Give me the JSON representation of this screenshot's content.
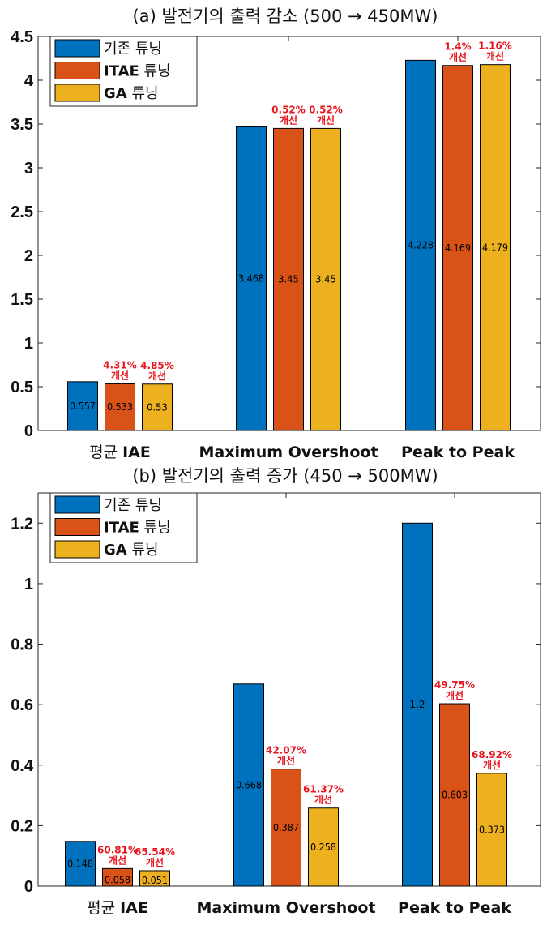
{
  "colors": {
    "series": [
      "#0072BD",
      "#D95319",
      "#EDB120"
    ],
    "annotation": "#E8141E",
    "bar_edge": "#000000"
  },
  "chart_data": [
    {
      "type": "bar",
      "title": "(a) 발전기의 출력 감소 (500 → 450MW)",
      "categories": [
        "평균 IAE",
        "Maximum Overshoot",
        "Peak to Peak"
      ],
      "series": [
        {
          "name": "기존 튜닝",
          "values": [
            0.557,
            3.468,
            4.228
          ],
          "labels": [
            "0.557",
            "3.468",
            "4.228"
          ]
        },
        {
          "name": "ITAE 튜닝",
          "values": [
            0.533,
            3.45,
            4.169
          ],
          "labels": [
            "0.533",
            "3.45",
            "4.169"
          ]
        },
        {
          "name": "GA 튜닝",
          "values": [
            0.53,
            3.45,
            4.179
          ],
          "labels": [
            "0.53",
            "3.45",
            "4.179"
          ]
        }
      ],
      "annotations": [
        {
          "series": 1,
          "category": 0,
          "text": [
            "4.31%",
            "개선"
          ]
        },
        {
          "series": 2,
          "category": 0,
          "text": [
            "4.85%",
            "개선"
          ]
        },
        {
          "series": 1,
          "category": 1,
          "text": [
            "0.52%",
            "개선"
          ]
        },
        {
          "series": 2,
          "category": 1,
          "text": [
            "0.52%",
            "개선"
          ]
        },
        {
          "series": 1,
          "category": 2,
          "text": [
            "1.4%",
            "개선"
          ]
        },
        {
          "series": 2,
          "category": 2,
          "text": [
            "1.16%",
            "개선"
          ]
        }
      ],
      "ylim": [
        0,
        4.5
      ],
      "yticks": [
        "0",
        "0.5",
        "1",
        "1.5",
        "2",
        "2.5",
        "3",
        "3.5",
        "4",
        "4.5"
      ],
      "ytick_values": [
        0,
        0.5,
        1,
        1.5,
        2,
        2.5,
        3,
        3.5,
        4,
        4.5
      ],
      "legend": "top-left",
      "grid": false
    },
    {
      "type": "bar",
      "title": "(b) 발전기의 출력 증가 (450 → 500MW)",
      "categories": [
        "평균 IAE",
        "Maximum Overshoot",
        "Peak to Peak"
      ],
      "series": [
        {
          "name": "기존 튜닝",
          "values": [
            0.148,
            0.668,
            1.2
          ],
          "labels": [
            "0.148",
            "0.668",
            "1.2"
          ]
        },
        {
          "name": "ITAE 튜닝",
          "values": [
            0.058,
            0.387,
            0.603
          ],
          "labels": [
            "0.058",
            "0.387",
            "0.603"
          ]
        },
        {
          "name": "GA 튜닝",
          "values": [
            0.051,
            0.258,
            0.373
          ],
          "labels": [
            "0.051",
            "0.258",
            "0.373"
          ]
        }
      ],
      "annotations": [
        {
          "series": 1,
          "category": 0,
          "text": [
            "60.81%",
            "개선"
          ]
        },
        {
          "series": 2,
          "category": 0,
          "text": [
            "65.54%",
            "개선"
          ]
        },
        {
          "series": 1,
          "category": 1,
          "text": [
            "42.07%",
            "개선"
          ]
        },
        {
          "series": 2,
          "category": 1,
          "text": [
            "61.37%",
            "개선"
          ]
        },
        {
          "series": 1,
          "category": 2,
          "text": [
            "49.75%",
            "개선"
          ]
        },
        {
          "series": 2,
          "category": 2,
          "text": [
            "68.92%",
            "개선"
          ]
        }
      ],
      "ylim": [
        0,
        1.3
      ],
      "yticks": [
        "0",
        "0.2",
        "0.4",
        "0.6",
        "0.8",
        "1",
        "1.2"
      ],
      "ytick_values": [
        0,
        0.2,
        0.4,
        0.6,
        0.8,
        1,
        1.2
      ],
      "legend": "top-left",
      "grid": false
    }
  ]
}
